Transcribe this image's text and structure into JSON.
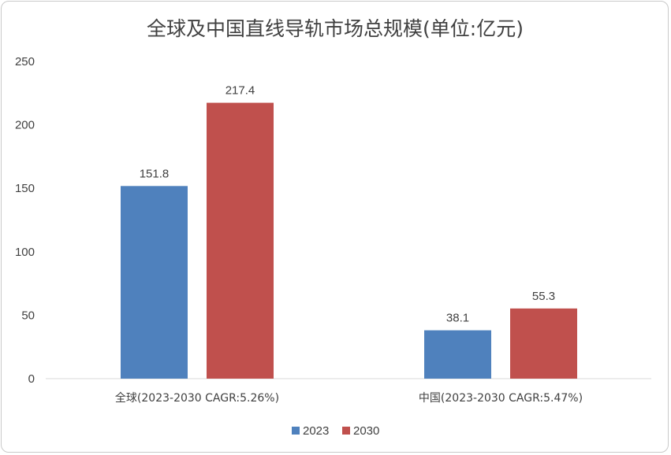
{
  "chart_data": {
    "type": "bar",
    "title": "全球及中国直线导轨市场总规模(单位:亿元)",
    "categories": [
      "全球(2023-2030 CAGR:5.26%)",
      "中国(2023-2030 CAGR:5.47%)"
    ],
    "series": [
      {
        "name": "2023",
        "values": [
          151.8,
          38.1
        ],
        "color": "#4f81bd"
      },
      {
        "name": "2030",
        "values": [
          217.4,
          55.3
        ],
        "color": "#c0504d"
      }
    ],
    "ylim": [
      0,
      250
    ],
    "yticks": [
      0,
      50,
      100,
      150,
      200,
      250
    ],
    "ytick_labels": [
      "0",
      "50",
      "100",
      "150",
      "200",
      "250"
    ],
    "data_labels": [
      [
        "151.8",
        "38.1"
      ],
      [
        "217.4",
        "55.3"
      ]
    ],
    "grid": false,
    "legend_position": "bottom"
  }
}
